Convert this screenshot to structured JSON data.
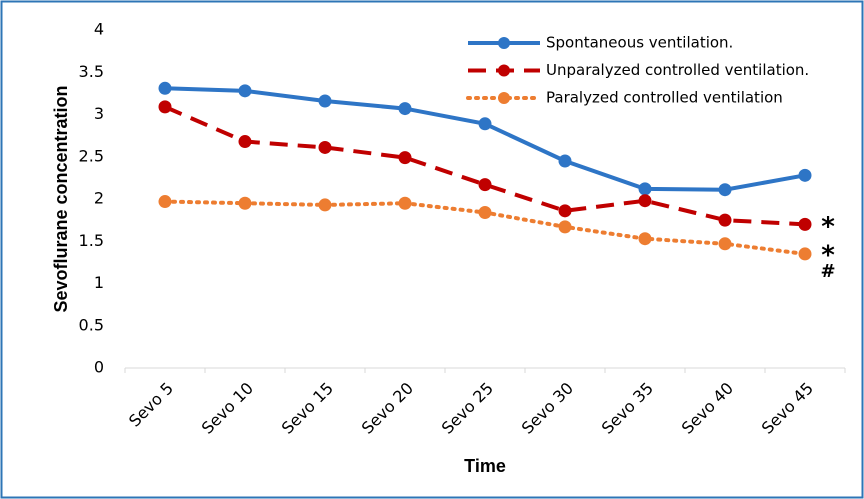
{
  "chart_data": {
    "type": "line",
    "x_label": "Time",
    "y_label": "Sevoflurane concentration",
    "categories": [
      "Sevo 5",
      "Sevo 10",
      "Sevo 15",
      "Sevo 20",
      "Sevo 25",
      "Sevo 30",
      "Sevo 35",
      "Sevo 40",
      "Sevo 45"
    ],
    "series": [
      {
        "name": "Spontaneous ventilation.",
        "color": "#2e75c6",
        "line_style": "solid",
        "values": [
          3.31,
          3.28,
          3.16,
          3.07,
          2.89,
          2.45,
          2.12,
          2.11,
          2.28
        ]
      },
      {
        "name": "Unparalyzed controlled ventilation.",
        "color": "#c00000",
        "line_style": "dashed",
        "values": [
          3.09,
          2.68,
          2.61,
          2.49,
          2.17,
          1.86,
          1.98,
          1.75,
          1.7
        ]
      },
      {
        "name": "Paralyzed controlled ventilation",
        "color": "#ed7d31",
        "line_style": "dotted",
        "values": [
          1.97,
          1.95,
          1.93,
          1.95,
          1.84,
          1.67,
          1.53,
          1.47,
          1.35
        ]
      }
    ],
    "annotations": [
      "*",
      "*",
      "#"
    ],
    "ylim": [
      0,
      4
    ],
    "yticks": [
      0,
      0.5,
      1,
      1.5,
      2,
      2.5,
      3,
      3.5,
      4
    ],
    "grid": false,
    "legend": "top-right"
  }
}
